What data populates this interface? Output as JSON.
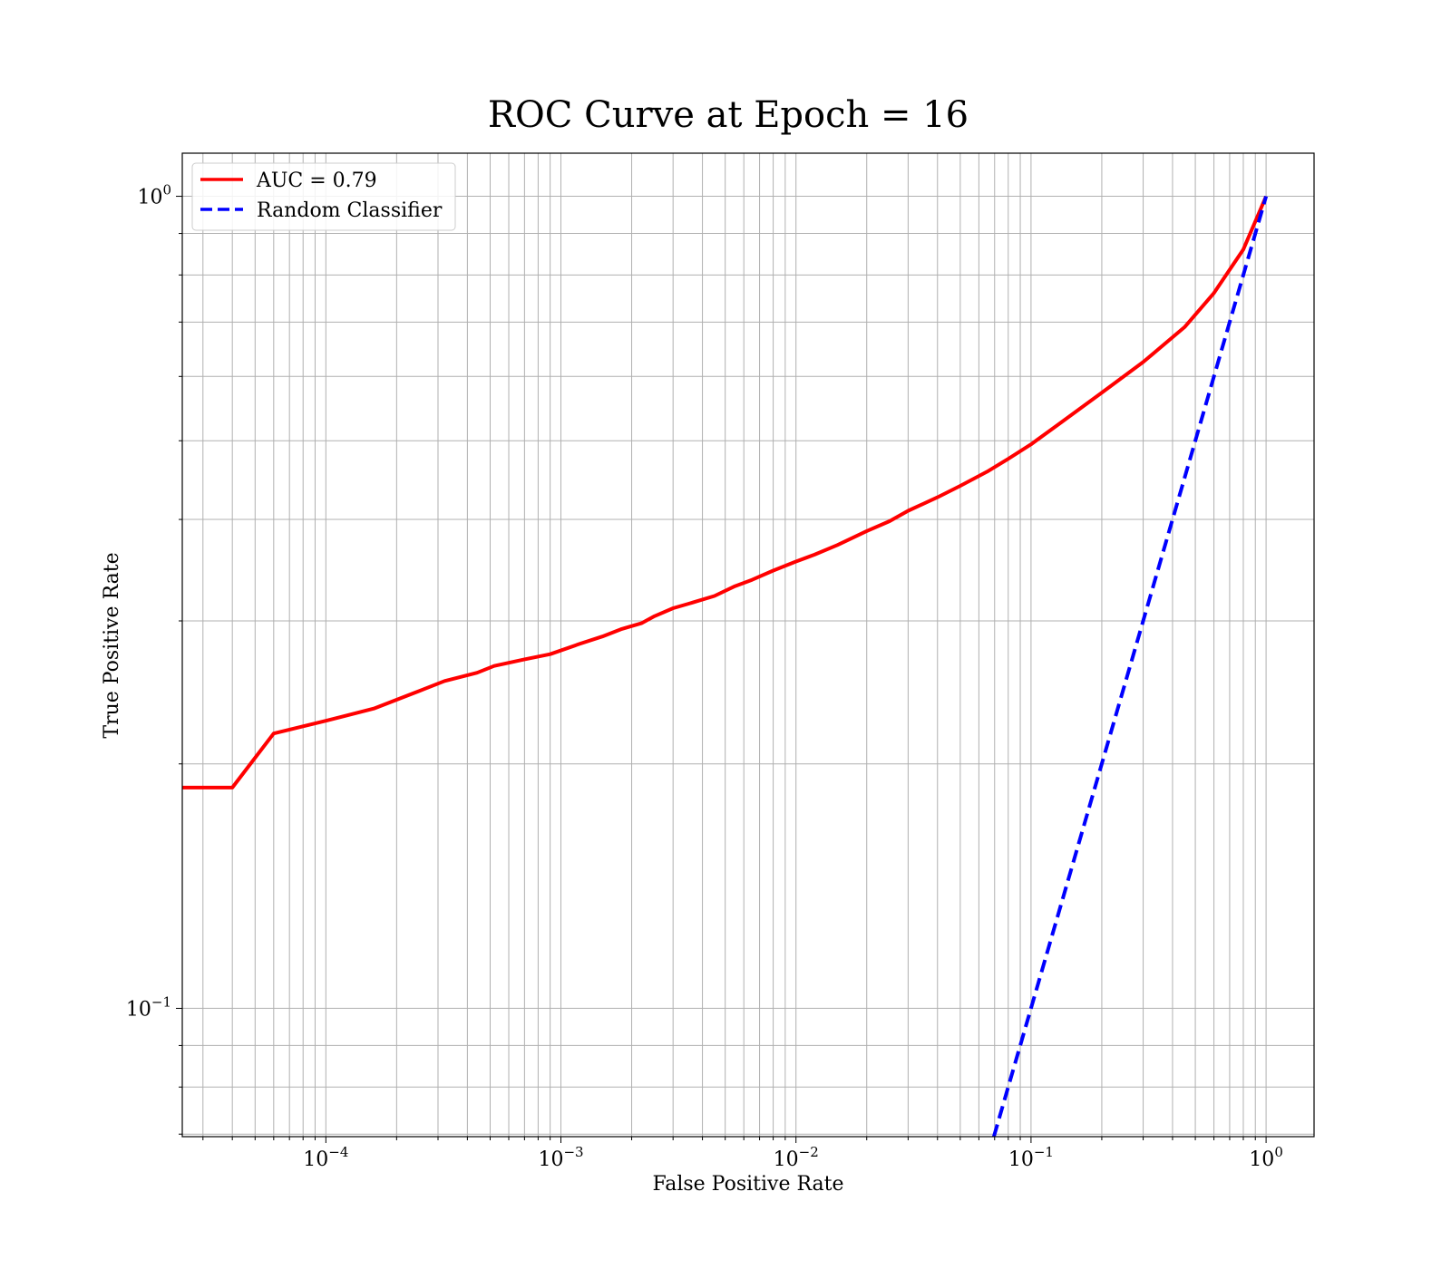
{
  "chart_data": {
    "type": "line",
    "title": "ROC Curve at Epoch = 16",
    "xlabel": "False Positive Rate",
    "ylabel": "True Positive Rate",
    "xscale": "log",
    "yscale": "log",
    "xlim": [
      2.45e-05,
      1.6
    ],
    "ylim": [
      0.0695,
      1.13
    ],
    "grid": "both",
    "legend_position": "top-left",
    "x_ticks": [
      {
        "base": "10",
        "exp": "−4",
        "value": 0.0001
      },
      {
        "base": "10",
        "exp": "−3",
        "value": 0.001
      },
      {
        "base": "10",
        "exp": "−2",
        "value": 0.01
      },
      {
        "base": "10",
        "exp": "−1",
        "value": 0.1
      },
      {
        "base": "10",
        "exp": "0",
        "value": 1
      }
    ],
    "y_ticks": [
      {
        "base": "10",
        "exp": "−1",
        "value": 0.1
      },
      {
        "base": "10",
        "exp": "0",
        "value": 1
      }
    ],
    "series": [
      {
        "name": "AUC = 0.79",
        "color": "#ff0000",
        "dash": "solid",
        "points": [
          [
            2.45e-05,
            0.187
          ],
          [
            4e-05,
            0.187
          ],
          [
            6e-05,
            0.218
          ],
          [
            0.0001,
            0.226
          ],
          [
            0.00016,
            0.234
          ],
          [
            0.00025,
            0.246
          ],
          [
            0.00032,
            0.253
          ],
          [
            0.00044,
            0.259
          ],
          [
            0.00052,
            0.264
          ],
          [
            0.0007,
            0.269
          ],
          [
            0.0009,
            0.273
          ],
          [
            0.0012,
            0.281
          ],
          [
            0.0015,
            0.287
          ],
          [
            0.0018,
            0.293
          ],
          [
            0.0022,
            0.298
          ],
          [
            0.0025,
            0.304
          ],
          [
            0.003,
            0.311
          ],
          [
            0.0035,
            0.315
          ],
          [
            0.0045,
            0.322
          ],
          [
            0.0055,
            0.331
          ],
          [
            0.0065,
            0.337
          ],
          [
            0.008,
            0.346
          ],
          [
            0.01,
            0.355
          ],
          [
            0.012,
            0.362
          ],
          [
            0.015,
            0.372
          ],
          [
            0.02,
            0.387
          ],
          [
            0.025,
            0.398
          ],
          [
            0.03,
            0.41
          ],
          [
            0.04,
            0.426
          ],
          [
            0.05,
            0.44
          ],
          [
            0.065,
            0.458
          ],
          [
            0.08,
            0.475
          ],
          [
            0.1,
            0.495
          ],
          [
            0.13,
            0.523
          ],
          [
            0.2,
            0.573
          ],
          [
            0.3,
            0.625
          ],
          [
            0.45,
            0.69
          ],
          [
            0.6,
            0.76
          ],
          [
            0.8,
            0.86
          ],
          [
            1.0,
            1.0
          ]
        ]
      },
      {
        "name": "Random Classifier",
        "color": "#0000ff",
        "dash": "dashed",
        "points": [
          [
            0.0695,
            0.0695
          ],
          [
            1.0,
            1.0
          ]
        ]
      }
    ]
  }
}
